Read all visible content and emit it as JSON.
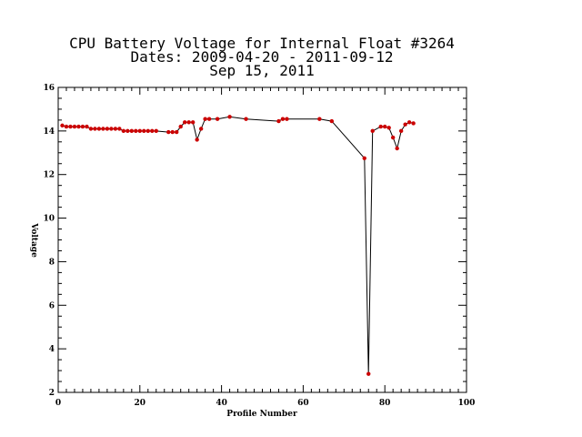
{
  "chart_data": {
    "type": "line",
    "title_lines": [
      "CPU Battery Voltage for Internal Float #3264",
      "Dates:  2009-04-20 -  2011-09-12",
      "Sep 15, 2011"
    ],
    "xlabel": "Profile Number",
    "ylabel": "Voltage",
    "xlim": [
      0,
      100
    ],
    "ylim": [
      2,
      16
    ],
    "x_ticks": [
      0,
      20,
      40,
      60,
      80,
      100
    ],
    "y_ticks": [
      2,
      4,
      6,
      8,
      10,
      12,
      14,
      16
    ],
    "x_minor_step": 2,
    "y_minor_step": 0.5,
    "grid": false,
    "line_color": "#000000",
    "marker_color": "#cc0000",
    "series": [
      {
        "x": [
          1,
          2,
          3,
          4,
          5,
          6,
          7,
          8,
          9,
          10,
          11,
          12,
          13,
          14,
          15,
          16,
          17,
          18,
          19,
          20,
          21,
          22,
          23,
          24,
          27,
          28,
          29,
          30,
          31,
          32,
          33,
          34,
          35,
          36,
          37,
          39,
          42,
          46,
          54,
          55,
          56,
          64,
          67,
          75,
          76,
          77,
          79,
          80,
          81,
          82,
          83,
          84,
          85,
          86,
          87
        ],
        "y": [
          14.25,
          14.2,
          14.2,
          14.2,
          14.2,
          14.2,
          14.2,
          14.1,
          14.1,
          14.1,
          14.1,
          14.1,
          14.1,
          14.1,
          14.1,
          14.0,
          14.0,
          14.0,
          14.0,
          14.0,
          14.0,
          14.0,
          14.0,
          14.0,
          13.95,
          13.95,
          13.95,
          14.2,
          14.4,
          14.4,
          14.4,
          13.6,
          14.1,
          14.55,
          14.55,
          14.55,
          14.65,
          14.55,
          14.45,
          14.55,
          14.55,
          14.55,
          14.45,
          12.75,
          2.85,
          14.0,
          14.2,
          14.2,
          14.15,
          13.7,
          13.2,
          14.0,
          14.3,
          14.4,
          14.35
        ]
      }
    ]
  }
}
